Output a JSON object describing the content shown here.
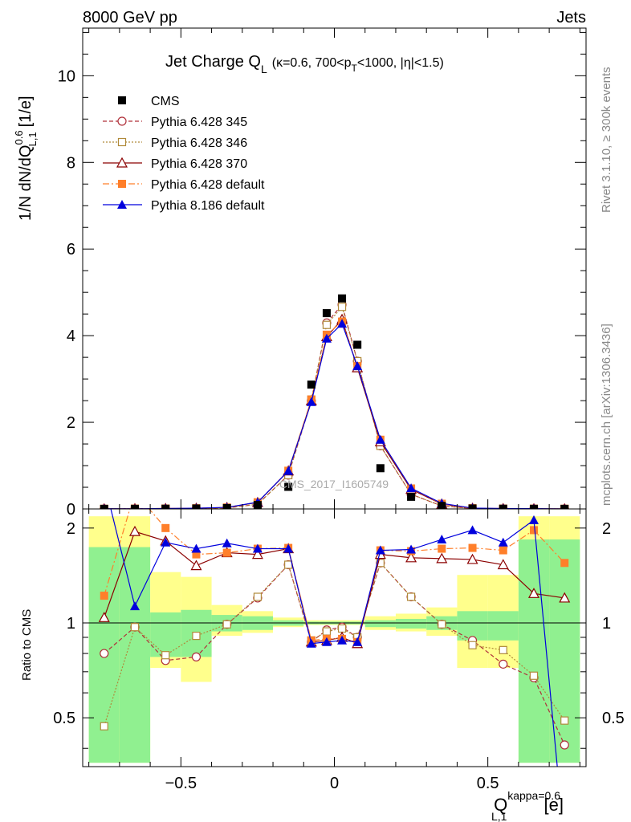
{
  "header": {
    "left": "8000 GeV pp",
    "right": "Jets"
  },
  "side_labels": {
    "rivet": "Rivet 3.1.10, ≥ 300k events",
    "mcplots": "mcplots.cern.ch [arXiv:1306.3436]"
  },
  "watermark": "CMS_2017_I1605749",
  "chart_data": {
    "type": "scatter",
    "title": {
      "main": "Jet Charge Q",
      "main_sub": "L",
      "detail_pre": "(κ=0.6, 700<p",
      "detail_sub": "T",
      "detail_post": "<1000, |η|<1.5)"
    },
    "x_title": {
      "main": "Q",
      "sub": "L,1",
      "sup": "kappa=0.6",
      "unit": "[e]"
    },
    "y_title": {
      "pre": "1/N dN/dQ",
      "sub": "L,1",
      "sup": "0.6",
      "unit": "[1/e]"
    },
    "ratio_ylabel": "Ratio to CMS",
    "xlim": [
      -0.82,
      0.82
    ],
    "ylim": [
      0,
      11.1
    ],
    "ratio_ylim": [
      0.35,
      2.3
    ],
    "ratio_log": true,
    "x_ticks": [
      -0.5,
      0,
      0.5
    ],
    "x_tick_labels": [
      "−0.5",
      "0",
      "0.5"
    ],
    "y_ticks": [
      0,
      2,
      4,
      6,
      8,
      10
    ],
    "y_tick_labels": [
      "0",
      "2",
      "4",
      "6",
      "8",
      "10"
    ],
    "ratio_ticks": [
      0.5,
      1,
      2
    ],
    "ratio_tick_labels": [
      "0.5",
      "1",
      "2"
    ],
    "x": [
      -0.75,
      -0.65,
      -0.55,
      -0.45,
      -0.35,
      -0.25,
      -0.15,
      -0.075,
      -0.025,
      0.025,
      0.075,
      0.15,
      0.25,
      0.35,
      0.45,
      0.55,
      0.65,
      0.75
    ],
    "bins": [
      [
        -0.8,
        -0.7
      ],
      [
        -0.7,
        -0.6
      ],
      [
        -0.6,
        -0.5
      ],
      [
        -0.5,
        -0.4
      ],
      [
        -0.4,
        -0.3
      ],
      [
        -0.3,
        -0.2
      ],
      [
        -0.2,
        -0.1
      ],
      [
        -0.1,
        -0.05
      ],
      [
        -0.05,
        0.0
      ],
      [
        0.0,
        0.05
      ],
      [
        0.05,
        0.1
      ],
      [
        0.1,
        0.2
      ],
      [
        0.2,
        0.3
      ],
      [
        0.3,
        0.4
      ],
      [
        0.4,
        0.5
      ],
      [
        0.5,
        0.6
      ],
      [
        0.6,
        0.7
      ],
      [
        0.7,
        0.8
      ]
    ],
    "band_outer": [
      [
        0.36,
        2.18
      ],
      [
        0.36,
        2.18
      ],
      [
        0.72,
        1.45
      ],
      [
        0.65,
        1.4
      ],
      [
        0.91,
        1.14
      ],
      [
        0.93,
        1.09
      ],
      [
        0.97,
        1.04
      ],
      [
        0.985,
        1.02
      ],
      [
        0.985,
        1.02
      ],
      [
        0.985,
        1.02
      ],
      [
        0.985,
        1.02
      ],
      [
        0.95,
        1.05
      ],
      [
        0.94,
        1.07
      ],
      [
        0.91,
        1.12
      ],
      [
        0.72,
        1.42
      ],
      [
        0.72,
        1.42
      ],
      [
        0.36,
        2.18
      ],
      [
        0.36,
        2.18
      ]
    ],
    "band_inner": [
      [
        0.36,
        1.74
      ],
      [
        0.36,
        1.74
      ],
      [
        0.78,
        1.08
      ],
      [
        0.78,
        1.1
      ],
      [
        0.94,
        1.06
      ],
      [
        0.95,
        1.05
      ],
      [
        0.98,
        1.02
      ],
      [
        0.99,
        1.01
      ],
      [
        0.99,
        1.01
      ],
      [
        0.99,
        1.01
      ],
      [
        0.99,
        1.01
      ],
      [
        0.97,
        1.02
      ],
      [
        0.96,
        1.03
      ],
      [
        0.95,
        1.05
      ],
      [
        0.88,
        1.09
      ],
      [
        0.88,
        1.09
      ],
      [
        0.36,
        1.84
      ],
      [
        0.36,
        1.84
      ]
    ],
    "series": [
      {
        "name": "CMS",
        "color": "#000000",
        "marker": "square-filled",
        "line": "none",
        "values": [
          0.002,
          0.003,
          0.005,
          0.01,
          0.02,
          0.09,
          0.51,
          2.87,
          4.52,
          4.86,
          3.79,
          0.94,
          0.28,
          0.07,
          0.01,
          0.005,
          0.003,
          0.002
        ]
      },
      {
        "name": "Pythia 6.428 345",
        "color": "#b0303a",
        "marker": "circle-open",
        "line": "dashed",
        "ratio": [
          0.8,
          0.97,
          0.76,
          0.78,
          0.99,
          1.2,
          1.53,
          0.87,
          0.95,
          0.97,
          0.9,
          1.55,
          1.21,
          0.99,
          0.88,
          0.74,
          0.67,
          0.41
        ]
      },
      {
        "name": "Pythia 6.428 346",
        "color": "#b08a3a",
        "marker": "square-open",
        "line": "dotted",
        "ratio": [
          0.47,
          0.97,
          0.79,
          0.91,
          0.99,
          1.21,
          1.53,
          0.88,
          0.94,
          0.96,
          0.9,
          1.55,
          1.21,
          0.99,
          0.85,
          0.82,
          0.68,
          0.49
        ]
      },
      {
        "name": "Pythia 6.428 370",
        "color": "#8b0000",
        "marker": "triangle-open",
        "line": "solid",
        "ratio": [
          1.04,
          1.95,
          1.82,
          1.52,
          1.67,
          1.65,
          1.72,
          0.87,
          0.88,
          0.9,
          0.86,
          1.65,
          1.61,
          1.6,
          1.59,
          1.53,
          1.24,
          1.2
        ]
      },
      {
        "name": "Pythia 6.428 default",
        "color": "#ff7f2a",
        "marker": "square-filled",
        "line": "dashdot",
        "ratio": [
          1.22,
          2.6,
          2.0,
          1.65,
          1.67,
          1.72,
          1.73,
          0.88,
          0.89,
          0.89,
          0.87,
          1.7,
          1.69,
          1.72,
          1.73,
          1.7,
          1.97,
          1.55
        ]
      },
      {
        "name": "Pythia 8.186 default",
        "color": "#0000dd",
        "marker": "triangle-filled",
        "line": "solid",
        "ratio": [
          2.8,
          1.13,
          1.8,
          1.72,
          1.79,
          1.72,
          1.72,
          0.86,
          0.87,
          0.88,
          0.87,
          1.7,
          1.71,
          1.84,
          1.97,
          1.8,
          2.12,
          0.2
        ]
      }
    ]
  }
}
